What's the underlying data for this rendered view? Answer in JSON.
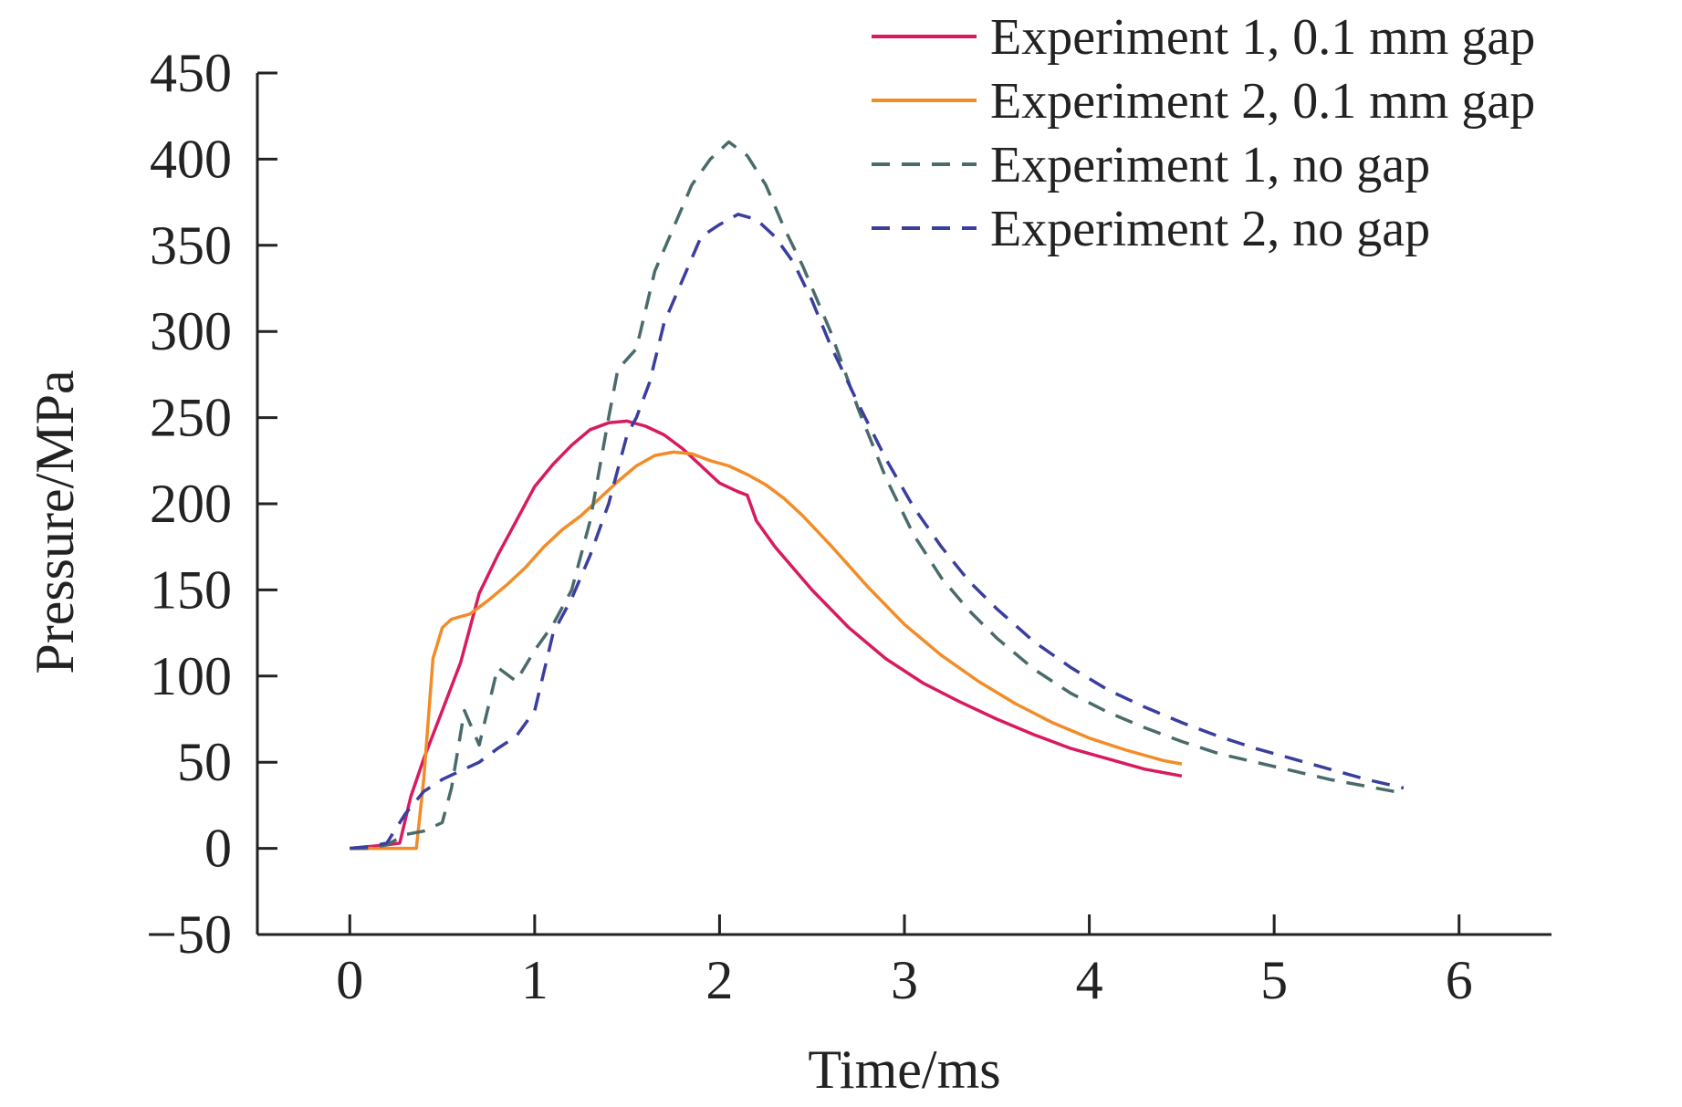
{
  "chart_data": {
    "type": "line",
    "title": "",
    "xlabel": "Time/ms",
    "ylabel": "Pressure/MPa",
    "xlim": [
      -0.5,
      6.5
    ],
    "ylim": [
      -50,
      450
    ],
    "xticks": [
      0,
      1,
      2,
      3,
      4,
      5,
      6
    ],
    "yticks": [
      -50,
      0,
      50,
      100,
      150,
      200,
      250,
      300,
      350,
      400,
      450
    ],
    "grid": false,
    "legend_position": "top-right",
    "series": [
      {
        "name": "Experiment 1, 0.1 mm gap",
        "color": "#d81b60",
        "dash": "solid",
        "points": [
          [
            0,
            0
          ],
          [
            0.1,
            1
          ],
          [
            0.2,
            2
          ],
          [
            0.27,
            3
          ],
          [
            0.33,
            30
          ],
          [
            0.4,
            52
          ],
          [
            0.5,
            80
          ],
          [
            0.6,
            108
          ],
          [
            0.7,
            148
          ],
          [
            0.8,
            170
          ],
          [
            0.9,
            190
          ],
          [
            1.0,
            210
          ],
          [
            1.1,
            223
          ],
          [
            1.2,
            234
          ],
          [
            1.3,
            243
          ],
          [
            1.4,
            247
          ],
          [
            1.5,
            248
          ],
          [
            1.6,
            245
          ],
          [
            1.7,
            240
          ],
          [
            1.8,
            232
          ],
          [
            1.9,
            222
          ],
          [
            2.0,
            212
          ],
          [
            2.1,
            207
          ],
          [
            2.15,
            205
          ],
          [
            2.2,
            190
          ],
          [
            2.3,
            175
          ],
          [
            2.5,
            150
          ],
          [
            2.7,
            128
          ],
          [
            2.9,
            110
          ],
          [
            3.1,
            96
          ],
          [
            3.3,
            85
          ],
          [
            3.5,
            75
          ],
          [
            3.7,
            66
          ],
          [
            3.9,
            58
          ],
          [
            4.1,
            52
          ],
          [
            4.3,
            46
          ],
          [
            4.5,
            42
          ]
        ]
      },
      {
        "name": "Experiment 2, 0.1 mm gap",
        "color": "#f28c28",
        "dash": "solid",
        "points": [
          [
            0,
            0
          ],
          [
            0.2,
            0
          ],
          [
            0.36,
            0
          ],
          [
            0.4,
            40
          ],
          [
            0.45,
            110
          ],
          [
            0.5,
            128
          ],
          [
            0.55,
            133
          ],
          [
            0.65,
            136
          ],
          [
            0.75,
            144
          ],
          [
            0.85,
            153
          ],
          [
            0.95,
            163
          ],
          [
            1.05,
            175
          ],
          [
            1.15,
            185
          ],
          [
            1.25,
            193
          ],
          [
            1.35,
            203
          ],
          [
            1.45,
            213
          ],
          [
            1.55,
            222
          ],
          [
            1.65,
            228
          ],
          [
            1.75,
            230
          ],
          [
            1.85,
            229
          ],
          [
            1.95,
            225
          ],
          [
            2.05,
            222
          ],
          [
            2.15,
            217
          ],
          [
            2.25,
            211
          ],
          [
            2.35,
            203
          ],
          [
            2.45,
            193
          ],
          [
            2.6,
            176
          ],
          [
            2.8,
            152
          ],
          [
            3.0,
            130
          ],
          [
            3.2,
            112
          ],
          [
            3.4,
            97
          ],
          [
            3.6,
            84
          ],
          [
            3.8,
            73
          ],
          [
            4.0,
            64
          ],
          [
            4.2,
            57
          ],
          [
            4.4,
            51
          ],
          [
            4.5,
            49
          ]
        ]
      },
      {
        "name": "Experiment 1, no gap",
        "color": "#4a6b6b",
        "dash": "dashed",
        "points": [
          [
            0,
            0
          ],
          [
            0.1,
            0
          ],
          [
            0.2,
            2
          ],
          [
            0.3,
            8
          ],
          [
            0.4,
            10
          ],
          [
            0.5,
            15
          ],
          [
            0.55,
            35
          ],
          [
            0.62,
            80
          ],
          [
            0.7,
            60
          ],
          [
            0.8,
            105
          ],
          [
            0.9,
            97
          ],
          [
            1.0,
            115
          ],
          [
            1.1,
            130
          ],
          [
            1.2,
            150
          ],
          [
            1.3,
            190
          ],
          [
            1.4,
            250
          ],
          [
            1.45,
            278
          ],
          [
            1.55,
            290
          ],
          [
            1.65,
            335
          ],
          [
            1.75,
            360
          ],
          [
            1.85,
            385
          ],
          [
            1.95,
            400
          ],
          [
            2.05,
            410
          ],
          [
            2.15,
            402
          ],
          [
            2.25,
            385
          ],
          [
            2.35,
            360
          ],
          [
            2.45,
            338
          ],
          [
            2.6,
            300
          ],
          [
            2.75,
            255
          ],
          [
            2.9,
            215
          ],
          [
            3.05,
            182
          ],
          [
            3.2,
            157
          ],
          [
            3.35,
            138
          ],
          [
            3.5,
            122
          ],
          [
            3.7,
            104
          ],
          [
            3.9,
            90
          ],
          [
            4.1,
            79
          ],
          [
            4.3,
            70
          ],
          [
            4.5,
            62
          ],
          [
            4.7,
            55
          ],
          [
            4.9,
            50
          ],
          [
            5.1,
            45
          ],
          [
            5.3,
            40
          ],
          [
            5.5,
            36
          ],
          [
            5.7,
            32
          ]
        ]
      },
      {
        "name": "Experiment 2, no gap",
        "color": "#3a3e9e",
        "dash": "dashed",
        "points": [
          [
            0,
            0
          ],
          [
            0.1,
            1
          ],
          [
            0.2,
            3
          ],
          [
            0.3,
            20
          ],
          [
            0.4,
            33
          ],
          [
            0.5,
            40
          ],
          [
            0.6,
            45
          ],
          [
            0.7,
            50
          ],
          [
            0.8,
            58
          ],
          [
            0.9,
            65
          ],
          [
            1.0,
            80
          ],
          [
            1.1,
            125
          ],
          [
            1.2,
            145
          ],
          [
            1.3,
            170
          ],
          [
            1.4,
            200
          ],
          [
            1.5,
            240
          ],
          [
            1.55,
            250
          ],
          [
            1.62,
            270
          ],
          [
            1.7,
            305
          ],
          [
            1.8,
            330
          ],
          [
            1.9,
            355
          ],
          [
            2.0,
            362
          ],
          [
            2.1,
            368
          ],
          [
            2.2,
            365
          ],
          [
            2.3,
            355
          ],
          [
            2.4,
            340
          ],
          [
            2.5,
            318
          ],
          [
            2.6,
            292
          ],
          [
            2.75,
            258
          ],
          [
            2.9,
            226
          ],
          [
            3.05,
            198
          ],
          [
            3.2,
            175
          ],
          [
            3.35,
            155
          ],
          [
            3.5,
            139
          ],
          [
            3.7,
            120
          ],
          [
            3.9,
            105
          ],
          [
            4.1,
            92
          ],
          [
            4.3,
            82
          ],
          [
            4.5,
            73
          ],
          [
            4.7,
            65
          ],
          [
            4.9,
            58
          ],
          [
            5.1,
            52
          ],
          [
            5.3,
            46
          ],
          [
            5.5,
            40
          ],
          [
            5.7,
            35
          ]
        ]
      }
    ]
  }
}
